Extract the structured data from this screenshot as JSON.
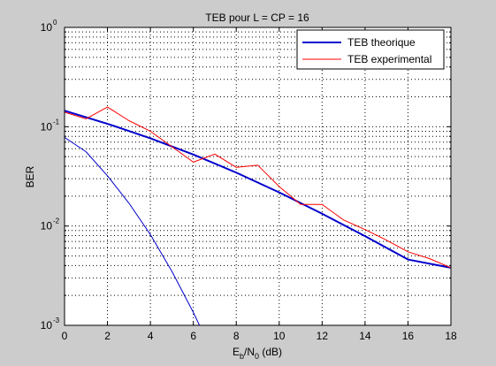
{
  "figure_background": "#cccccc",
  "axes_background": "#ffffff",
  "chart_data": {
    "type": "line",
    "title": "TEB pour L = CP = 16",
    "xlabel": {
      "base": "E",
      "sub1": "b",
      "mid": "/N",
      "sub2": "0",
      "tail": " (dB)"
    },
    "ylabel": "BER",
    "xlim": [
      0,
      18
    ],
    "ylim": [
      0.001,
      1
    ],
    "yscale": "log",
    "grid": true,
    "legend_position": "top-right",
    "x_ticks": [
      0,
      2,
      4,
      6,
      8,
      10,
      12,
      14,
      16,
      18
    ],
    "y_ticks": [
      {
        "value": 0.001,
        "base": "10",
        "exp": "-3"
      },
      {
        "value": 0.01,
        "base": "10",
        "exp": "-2"
      },
      {
        "value": 0.1,
        "base": "10",
        "exp": "-1"
      },
      {
        "value": 1,
        "base": "10",
        "exp": "0"
      }
    ],
    "series": [
      {
        "name": "TEB theorique",
        "color": "#0000cc",
        "width": 2,
        "in_legend": true,
        "x": [
          0,
          2,
          4,
          6,
          8,
          10,
          12,
          14,
          16,
          18
        ],
        "y": [
          0.145,
          0.107,
          0.0765,
          0.0525,
          0.0345,
          0.0218,
          0.0133,
          0.0079,
          0.0046,
          0.0038
        ]
      },
      {
        "name": "TEB experimental",
        "color": "#ff0000",
        "width": 1,
        "in_legend": true,
        "x": [
          0,
          1,
          2,
          3,
          4,
          5,
          6,
          7,
          8,
          9,
          10,
          11,
          12,
          13,
          14,
          15,
          16,
          17,
          18
        ],
        "y": [
          0.14,
          0.12,
          0.158,
          0.115,
          0.09,
          0.063,
          0.044,
          0.053,
          0.039,
          0.041,
          0.025,
          0.0165,
          0.0165,
          0.0115,
          0.0092,
          0.0072,
          0.0055,
          0.0047,
          0.0038
        ]
      },
      {
        "name": "",
        "color": "#0000cc",
        "width": 1,
        "in_legend": false,
        "x": [
          0,
          1,
          2,
          3,
          4,
          5,
          6,
          6.5,
          6.85
        ],
        "y": [
          0.078,
          0.056,
          0.032,
          0.017,
          0.0082,
          0.0035,
          0.00135,
          0.0008,
          0.001
        ]
      }
    ]
  }
}
